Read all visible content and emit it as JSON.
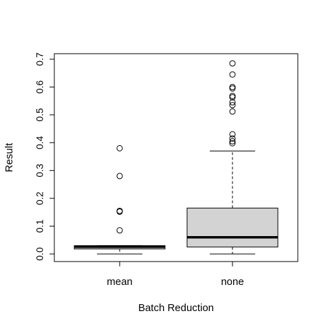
{
  "chart_data": {
    "type": "boxplot",
    "xlabel": "Batch Reduction",
    "ylabel": "Result",
    "ylim": [
      0,
      0.7
    ],
    "yticks": [
      0.0,
      0.1,
      0.2,
      0.3,
      0.4,
      0.5,
      0.6,
      0.7
    ],
    "ytick_labels": [
      "0.0",
      "0.1",
      "0.2",
      "0.3",
      "0.4",
      "0.5",
      "0.6",
      "0.7"
    ],
    "grid": false,
    "categories": [
      "mean",
      "none"
    ],
    "box_fill": "#d3d3d3",
    "series": [
      {
        "category": "mean",
        "whisker_low": 0.0,
        "q1": 0.018,
        "median": 0.026,
        "q3": 0.03,
        "whisker_high": 0.03,
        "outliers": [
          0.38,
          0.28,
          0.155,
          0.152,
          0.085
        ]
      },
      {
        "category": "none",
        "whisker_low": 0.0,
        "q1": 0.025,
        "median": 0.06,
        "q3": 0.165,
        "whisker_high": 0.37,
        "outliers": [
          0.685,
          0.645,
          0.6,
          0.595,
          0.568,
          0.563,
          0.545,
          0.535,
          0.512,
          0.43,
          0.415,
          0.405,
          0.398
        ]
      }
    ]
  }
}
